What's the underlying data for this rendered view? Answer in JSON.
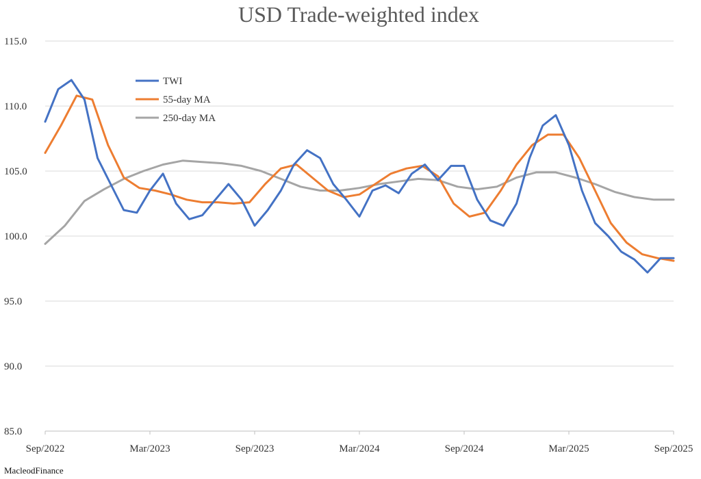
{
  "chart_data": {
    "type": "line",
    "title": "USD Trade-weighted index",
    "xlabel": "",
    "ylabel": "",
    "ylim": [
      85.0,
      115.0
    ],
    "y_ticks": [
      "85.0",
      "90.0",
      "95.0",
      "100.0",
      "105.0",
      "110.0",
      "115.0"
    ],
    "x_ticks": [
      "Sep/2022",
      "Mar/2023",
      "Sep/2023",
      "Mar/2024",
      "Sep/2024",
      "Mar/2025",
      "Sep/2025"
    ],
    "grid": true,
    "legend_position": "top-left",
    "x_point_labels": "monthly, Sep/2022 to Sep/2025 (index 0 = Sep/2022, 6 points per tick interval)",
    "series": [
      {
        "name": "TWI",
        "color": "#4472c4",
        "values": [
          108.8,
          111.3,
          112.0,
          110.5,
          106.0,
          104.0,
          102.0,
          101.8,
          103.5,
          104.8,
          102.5,
          101.3,
          101.6,
          102.8,
          104.0,
          102.8,
          100.8,
          102.0,
          103.5,
          105.5,
          106.6,
          106.0,
          104.0,
          102.8,
          101.5,
          103.5,
          103.9,
          103.3,
          104.8,
          105.5,
          104.3,
          105.4,
          105.4,
          102.8,
          101.2,
          100.8,
          102.5,
          106.0,
          108.5,
          109.3,
          107.0,
          103.5,
          101.0,
          100.0,
          98.8,
          98.2,
          97.2,
          98.3,
          98.3
        ]
      },
      {
        "name": "55-day MA",
        "color": "#ed7d31",
        "values": [
          106.4,
          108.5,
          110.8,
          110.5,
          107.0,
          104.5,
          103.7,
          103.5,
          103.2,
          102.8,
          102.6,
          102.6,
          102.5,
          102.6,
          104.0,
          105.2,
          105.5,
          104.5,
          103.5,
          103.0,
          103.2,
          104.0,
          104.8,
          105.2,
          105.4,
          104.6,
          102.5,
          101.5,
          101.8,
          103.5,
          105.5,
          107.0,
          107.8,
          107.8,
          106.0,
          103.5,
          101.0,
          99.5,
          98.6,
          98.3,
          98.1
        ]
      },
      {
        "name": "250-day MA",
        "color": "#a5a5a5",
        "values": [
          99.4,
          100.8,
          102.7,
          103.6,
          104.4,
          105.0,
          105.5,
          105.8,
          105.7,
          105.6,
          105.4,
          105.0,
          104.4,
          103.8,
          103.5,
          103.5,
          103.7,
          104.0,
          104.2,
          104.4,
          104.3,
          103.8,
          103.6,
          103.8,
          104.5,
          104.9,
          104.9,
          104.5,
          104.0,
          103.4,
          103.0,
          102.8,
          102.8
        ]
      }
    ]
  },
  "source": "MacleodFinance"
}
